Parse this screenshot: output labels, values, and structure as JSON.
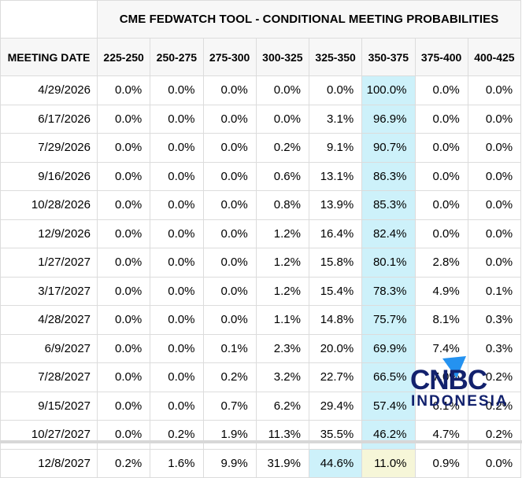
{
  "palette": {
    "highlight_cyan": "#cdf1fa",
    "highlight_yellow": "#f6f6d8",
    "header_bg": "#f7f7f7",
    "border": "#dcdcdc",
    "logo_navy": "#12216d",
    "logo_blue": "#2492f0"
  },
  "table": {
    "title": "CME FEDWATCH TOOL - CONDITIONAL MEETING PROBABILITIES",
    "date_column_header": "MEETING DATE",
    "rate_columns": [
      "225-250",
      "250-275",
      "275-300",
      "300-325",
      "325-350",
      "350-375",
      "375-400",
      "400-425"
    ],
    "rows": [
      {
        "date": "4/29/2026",
        "values": [
          "0.0%",
          "0.0%",
          "0.0%",
          "0.0%",
          "0.0%",
          "100.0%",
          "0.0%",
          "0.0%"
        ],
        "highlights": {
          "5": "cyan"
        }
      },
      {
        "date": "6/17/2026",
        "values": [
          "0.0%",
          "0.0%",
          "0.0%",
          "0.0%",
          "3.1%",
          "96.9%",
          "0.0%",
          "0.0%"
        ],
        "highlights": {
          "5": "cyan"
        }
      },
      {
        "date": "7/29/2026",
        "values": [
          "0.0%",
          "0.0%",
          "0.0%",
          "0.2%",
          "9.1%",
          "90.7%",
          "0.0%",
          "0.0%"
        ],
        "highlights": {
          "5": "cyan"
        }
      },
      {
        "date": "9/16/2026",
        "values": [
          "0.0%",
          "0.0%",
          "0.0%",
          "0.6%",
          "13.1%",
          "86.3%",
          "0.0%",
          "0.0%"
        ],
        "highlights": {
          "5": "cyan"
        }
      },
      {
        "date": "10/28/2026",
        "values": [
          "0.0%",
          "0.0%",
          "0.0%",
          "0.8%",
          "13.9%",
          "85.3%",
          "0.0%",
          "0.0%"
        ],
        "highlights": {
          "5": "cyan"
        }
      },
      {
        "date": "12/9/2026",
        "values": [
          "0.0%",
          "0.0%",
          "0.0%",
          "1.2%",
          "16.4%",
          "82.4%",
          "0.0%",
          "0.0%"
        ],
        "highlights": {
          "5": "cyan"
        }
      },
      {
        "date": "1/27/2027",
        "values": [
          "0.0%",
          "0.0%",
          "0.0%",
          "1.2%",
          "15.8%",
          "80.1%",
          "2.8%",
          "0.0%"
        ],
        "highlights": {
          "5": "cyan"
        }
      },
      {
        "date": "3/17/2027",
        "values": [
          "0.0%",
          "0.0%",
          "0.0%",
          "1.2%",
          "15.4%",
          "78.3%",
          "4.9%",
          "0.1%"
        ],
        "highlights": {
          "5": "cyan"
        }
      },
      {
        "date": "4/28/2027",
        "values": [
          "0.0%",
          "0.0%",
          "0.0%",
          "1.1%",
          "14.8%",
          "75.7%",
          "8.1%",
          "0.3%"
        ],
        "highlights": {
          "5": "cyan"
        }
      },
      {
        "date": "6/9/2027",
        "values": [
          "0.0%",
          "0.0%",
          "0.1%",
          "2.3%",
          "20.0%",
          "69.9%",
          "7.4%",
          "0.3%"
        ],
        "highlights": {
          "5": "cyan"
        }
      },
      {
        "date": "7/28/2027",
        "values": [
          "0.0%",
          "0.0%",
          "0.2%",
          "3.2%",
          "22.7%",
          "66.5%",
          "7.0%",
          "0.2%"
        ],
        "highlights": {
          "5": "cyan"
        }
      },
      {
        "date": "9/15/2027",
        "values": [
          "0.0%",
          "0.0%",
          "0.7%",
          "6.2%",
          "29.4%",
          "57.4%",
          "6.1%",
          "0.2%"
        ],
        "highlights": {
          "5": "cyan"
        }
      },
      {
        "date": "10/27/2027",
        "values": [
          "0.0%",
          "0.2%",
          "1.9%",
          "11.3%",
          "35.5%",
          "46.2%",
          "4.7%",
          "0.2%"
        ],
        "highlights": {
          "5": "cyan"
        }
      },
      {
        "date": "12/8/2027",
        "values": [
          "0.2%",
          "1.6%",
          "9.9%",
          "31.9%",
          "44.6%",
          "11.0%",
          "0.9%",
          "0.0%"
        ],
        "highlights": {
          "4": "cyan",
          "5": "yellow"
        }
      }
    ]
  },
  "watermark": {
    "line1": "CNBC",
    "line2": "INDONESIA"
  }
}
